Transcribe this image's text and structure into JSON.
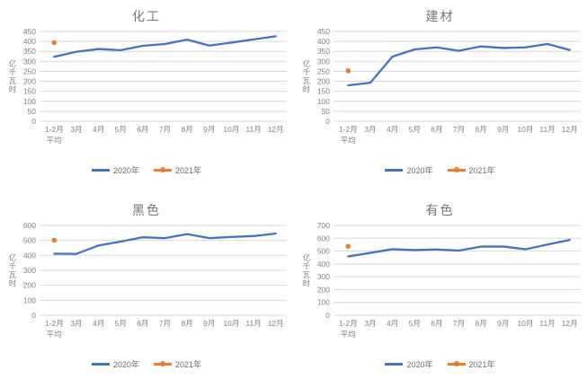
{
  "colors": {
    "series_2020": "#4472C4",
    "series_2021": "#ED7D31",
    "gridline": "#D9D9D9",
    "axis_text": "#808080",
    "title_text": "#757575"
  },
  "chart_data": [
    {
      "type": "line",
      "title": "化工",
      "ylabel": "亿千瓦时",
      "xlabel": "",
      "ylim": [
        0,
        450
      ],
      "ytick_step": 50,
      "grid": true,
      "legend_position": "bottom",
      "categories": [
        "1-2月\n平均",
        "3月",
        "4月",
        "5月",
        "6月",
        "7月",
        "8月",
        "9月",
        "10月",
        "11月",
        "12月"
      ],
      "series": [
        {
          "name": "2020年",
          "color_key": "series_2020",
          "marker": false,
          "values": [
            323,
            348,
            362,
            356,
            378,
            387,
            409,
            379,
            394,
            410,
            426
          ]
        },
        {
          "name": "2021年",
          "color_key": "series_2021",
          "marker": true,
          "values": [
            394,
            null,
            null,
            null,
            null,
            null,
            null,
            null,
            null,
            null,
            null
          ]
        }
      ]
    },
    {
      "type": "line",
      "title": "建材",
      "ylabel": "亿千瓦时",
      "xlabel": "",
      "ylim": [
        0,
        450
      ],
      "ytick_step": 50,
      "grid": true,
      "legend_position": "bottom",
      "categories": [
        "1-2月\n平均",
        "3月",
        "4月",
        "5月",
        "6月",
        "7月",
        "8月",
        "9月",
        "10月",
        "11月",
        "12月"
      ],
      "series": [
        {
          "name": "2020年",
          "color_key": "series_2020",
          "marker": false,
          "values": [
            180,
            193,
            324,
            360,
            370,
            353,
            375,
            367,
            370,
            387,
            357
          ]
        },
        {
          "name": "2021年",
          "color_key": "series_2021",
          "marker": true,
          "values": [
            253,
            null,
            null,
            null,
            null,
            null,
            null,
            null,
            null,
            null,
            null
          ]
        }
      ]
    },
    {
      "type": "line",
      "title": "黑色",
      "ylabel": "亿千瓦时",
      "xlabel": "",
      "ylim": [
        0,
        600
      ],
      "ytick_step": 100,
      "grid": true,
      "legend_position": "bottom",
      "categories": [
        "1-2月\n平均",
        "3月",
        "4月",
        "5月",
        "6月",
        "7月",
        "8月",
        "9月",
        "10月",
        "11月",
        "12月"
      ],
      "series": [
        {
          "name": "2020年",
          "color_key": "series_2020",
          "marker": false,
          "values": [
            411,
            410,
            466,
            492,
            521,
            515,
            542,
            515,
            523,
            529,
            546
          ]
        },
        {
          "name": "2021年",
          "color_key": "series_2021",
          "marker": true,
          "values": [
            501,
            null,
            null,
            null,
            null,
            null,
            null,
            null,
            null,
            null,
            null
          ]
        }
      ]
    },
    {
      "type": "line",
      "title": "有色",
      "ylabel": "亿千瓦时",
      "xlabel": "",
      "ylim": [
        0,
        700
      ],
      "ytick_step": 100,
      "grid": true,
      "legend_position": "bottom",
      "categories": [
        "1-2月\n平均",
        "3月",
        "4月",
        "5月",
        "6月",
        "7月",
        "8月",
        "9月",
        "10月",
        "11月",
        "12月"
      ],
      "series": [
        {
          "name": "2020年",
          "color_key": "series_2020",
          "marker": false,
          "values": [
            458,
            486,
            515,
            508,
            513,
            504,
            535,
            536,
            514,
            551,
            587
          ]
        },
        {
          "name": "2021年",
          "color_key": "series_2021",
          "marker": true,
          "values": [
            537,
            null,
            null,
            null,
            null,
            null,
            null,
            null,
            null,
            null,
            null
          ]
        }
      ]
    }
  ]
}
